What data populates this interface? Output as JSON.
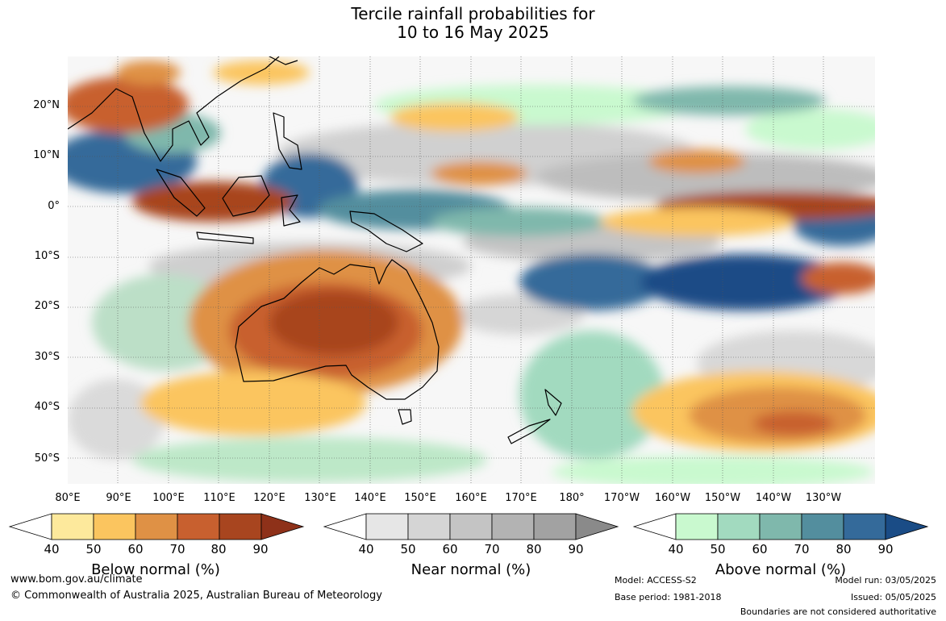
{
  "title": {
    "line1": "Tercile rainfall probabilities for",
    "line2": "10 to 16 May 2025"
  },
  "map": {
    "lat_labels": [
      "20°N",
      "10°N",
      "0°",
      "10°S",
      "20°S",
      "30°S",
      "40°S",
      "50°S"
    ],
    "lon_labels": [
      "80°E",
      "90°E",
      "100°E",
      "110°E",
      "120°E",
      "130°E",
      "140°E",
      "150°E",
      "160°E",
      "170°E",
      "180°",
      "170°W",
      "160°W",
      "150°W",
      "140°W",
      "130°W"
    ]
  },
  "colorbars": [
    {
      "name": "below",
      "title": "Below normal (%)",
      "ticks": [
        "40",
        "50",
        "60",
        "70",
        "80",
        "90"
      ],
      "colors": [
        "#ffffff",
        "#fde99c",
        "#fbc55f",
        "#df9145",
        "#c8602f",
        "#a8451f",
        "#8e3119"
      ]
    },
    {
      "name": "near",
      "title": "Near normal (%)",
      "ticks": [
        "40",
        "50",
        "60",
        "70",
        "80",
        "90"
      ],
      "colors": [
        "#ffffff",
        "#e6e6e6",
        "#d5d5d5",
        "#c4c4c4",
        "#b3b3b3",
        "#a2a2a2",
        "#8a8a8a"
      ]
    },
    {
      "name": "above",
      "title": "Above normal (%)",
      "ticks": [
        "40",
        "50",
        "60",
        "70",
        "80",
        "90"
      ],
      "colors": [
        "#ffffff",
        "#c9f9cf",
        "#a2dabf",
        "#7fb8ac",
        "#538e9e",
        "#346a9a",
        "#1a4c86"
      ]
    }
  ],
  "footer": {
    "website": "www.bom.gov.au/climate",
    "copyright": "© Commonwealth of Australia 2025, Australian Bureau of Meteorology",
    "model": "Model: ACCESS-S2",
    "base_period": "Base period: 1981-2018",
    "model_run": "Model run: 03/05/2025",
    "issued": "Issued: 05/05/2025",
    "boundaries": "Boundaries are not considered authoritative"
  }
}
